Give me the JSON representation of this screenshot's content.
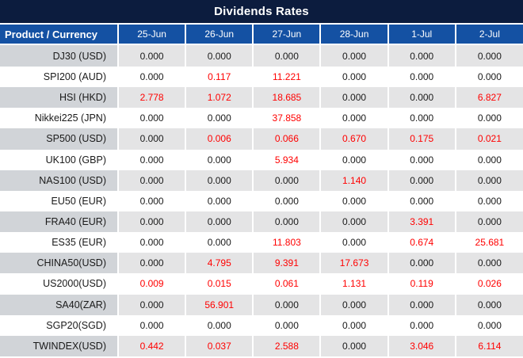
{
  "title": "Dividends Rates",
  "colors": {
    "title_bg": "#0c1c3e",
    "header_bg": "#1451a3",
    "band_first_col": "#d1d4d8",
    "band_cell": "#e4e4e5",
    "negative_value": "#ff0000",
    "value_text": "#1a1a1a"
  },
  "chart_data": {
    "type": "table",
    "title": "Dividends Rates",
    "columns": [
      "Product / Currency",
      "25-Jun",
      "26-Jun",
      "27-Jun",
      "28-Jun",
      "1-Jul",
      "2-Jul"
    ],
    "rows": [
      {
        "product": "DJ30 (USD)",
        "values": [
          "0.000",
          "0.000",
          "0.000",
          "0.000",
          "0.000",
          "0.000"
        ]
      },
      {
        "product": "SPI200 (AUD)",
        "values": [
          "0.000",
          "0.117",
          "11.221",
          "0.000",
          "0.000",
          "0.000"
        ]
      },
      {
        "product": "HSI (HKD)",
        "values": [
          "2.778",
          "1.072",
          "18.685",
          "0.000",
          "0.000",
          "6.827"
        ]
      },
      {
        "product": "Nikkei225 (JPN)",
        "values": [
          "0.000",
          "0.000",
          "37.858",
          "0.000",
          "0.000",
          "0.000"
        ]
      },
      {
        "product": "SP500 (USD)",
        "values": [
          "0.000",
          "0.006",
          "0.066",
          "0.670",
          "0.175",
          "0.021"
        ]
      },
      {
        "product": "UK100 (GBP)",
        "values": [
          "0.000",
          "0.000",
          "5.934",
          "0.000",
          "0.000",
          "0.000"
        ]
      },
      {
        "product": "NAS100 (USD)",
        "values": [
          "0.000",
          "0.000",
          "0.000",
          "1.140",
          "0.000",
          "0.000"
        ]
      },
      {
        "product": "EU50 (EUR)",
        "values": [
          "0.000",
          "0.000",
          "0.000",
          "0.000",
          "0.000",
          "0.000"
        ]
      },
      {
        "product": "FRA40 (EUR)",
        "values": [
          "0.000",
          "0.000",
          "0.000",
          "0.000",
          "3.391",
          "0.000"
        ]
      },
      {
        "product": "ES35 (EUR)",
        "values": [
          "0.000",
          "0.000",
          "11.803",
          "0.000",
          "0.674",
          "25.681"
        ]
      },
      {
        "product": "CHINA50(USD)",
        "values": [
          "0.000",
          "4.795",
          "9.391",
          "17.673",
          "0.000",
          "0.000"
        ]
      },
      {
        "product": "US2000(USD)",
        "values": [
          "0.009",
          "0.015",
          "0.061",
          "1.131",
          "0.119",
          "0.026"
        ]
      },
      {
        "product": "SA40(ZAR)",
        "values": [
          "0.000",
          "56.901",
          "0.000",
          "0.000",
          "0.000",
          "0.000"
        ]
      },
      {
        "product": "SGP20(SGD)",
        "values": [
          "0.000",
          "0.000",
          "0.000",
          "0.000",
          "0.000",
          "0.000"
        ]
      },
      {
        "product": "TWINDEX(USD)",
        "values": [
          "0.442",
          "0.037",
          "2.588",
          "0.000",
          "3.046",
          "6.114"
        ]
      }
    ],
    "value_color_rule": "zero values black, non-zero values red",
    "layout_hints": {
      "banding": "odd rows shaded gray",
      "separators": "2px white between cells"
    }
  }
}
